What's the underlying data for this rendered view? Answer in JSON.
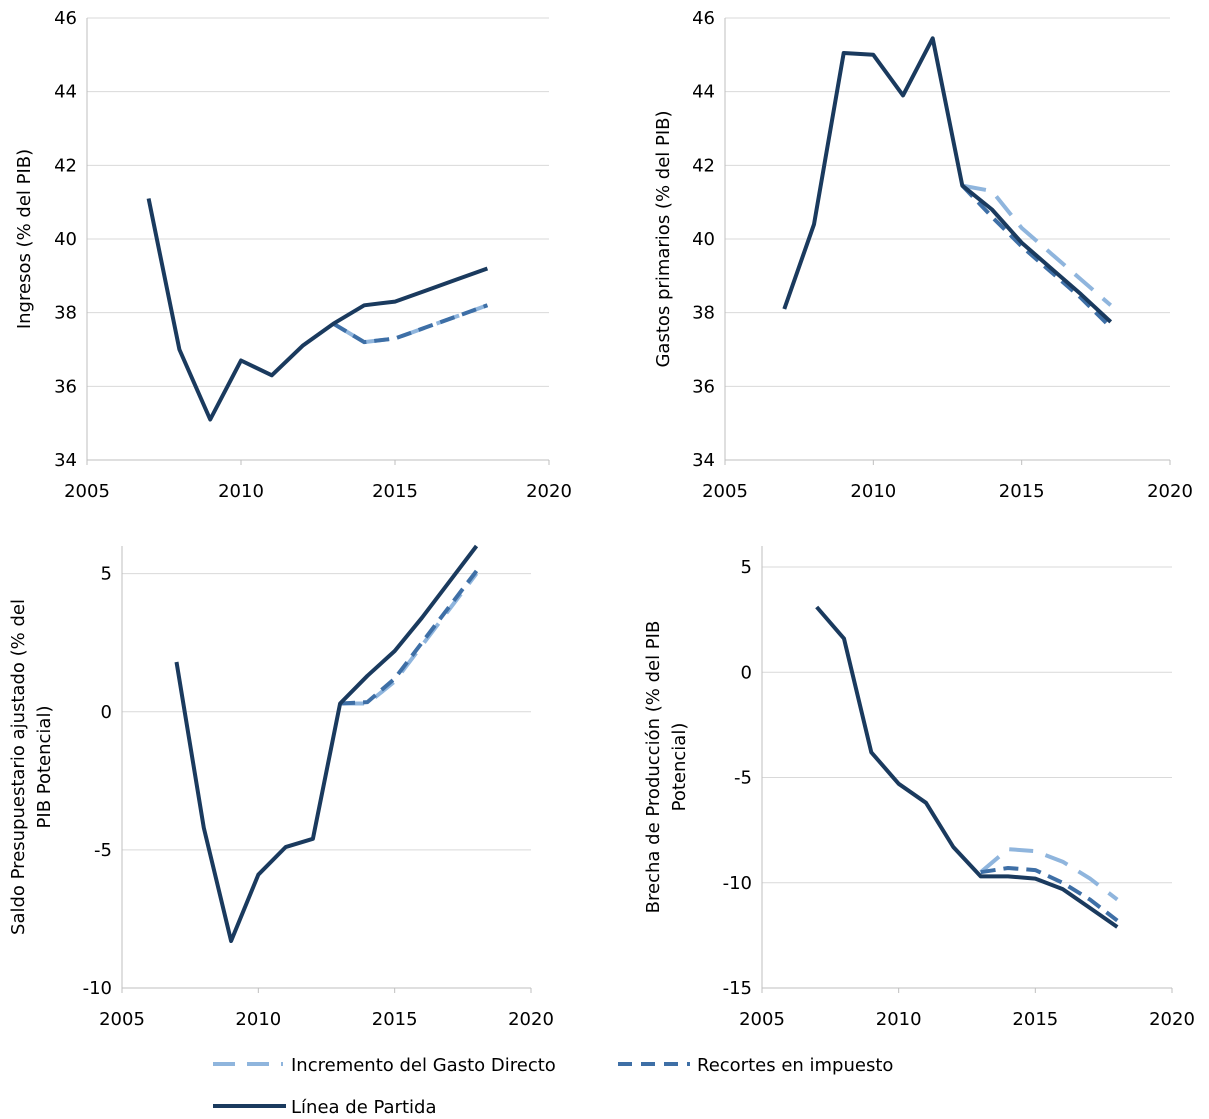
{
  "colors": {
    "baseline": "#1a3a5e",
    "gasto": "#8fb5dd",
    "impuesto": "#3e6fa6",
    "grid": "#d9d9d9"
  },
  "legend": {
    "gasto": "Incremento del Gasto Directo",
    "impuesto": "Recortes en impuesto",
    "baseline": "Línea de Partida"
  },
  "chart_data": [
    {
      "type": "line",
      "ylabel": [
        "Ingresos (% del PIB)"
      ],
      "xlim": [
        2005,
        2020
      ],
      "ylim": [
        34,
        46
      ],
      "xticks": [
        2005,
        2010,
        2015,
        2020
      ],
      "yticks": [
        34,
        36,
        38,
        40,
        42,
        44,
        46
      ],
      "grid": true,
      "series": [
        {
          "name": "Incremento del Gasto Directo",
          "key": "gasto",
          "dash": "long",
          "x": [
            2013,
            2014,
            2015,
            2016,
            2017,
            2018
          ],
          "y": [
            37.7,
            37.2,
            37.3,
            37.6,
            37.9,
            38.2
          ]
        },
        {
          "name": "Recortes en impuesto",
          "key": "impuesto",
          "dash": "short",
          "x": [
            2013,
            2014,
            2015,
            2016,
            2017,
            2018
          ],
          "y": [
            37.7,
            37.2,
            37.3,
            37.6,
            37.9,
            38.2
          ]
        },
        {
          "name": "Línea de Partida",
          "key": "baseline",
          "dash": "solid",
          "x": [
            2007,
            2008,
            2009,
            2010,
            2011,
            2012,
            2013,
            2014,
            2015,
            2016,
            2017,
            2018
          ],
          "y": [
            41.1,
            37.0,
            35.1,
            36.7,
            36.3,
            37.1,
            37.7,
            38.2,
            38.3,
            38.6,
            38.9,
            39.2
          ]
        }
      ]
    },
    {
      "type": "line",
      "ylabel": [
        "Gastos primarios (% del PIB)"
      ],
      "xlim": [
        2005,
        2020
      ],
      "ylim": [
        34,
        46
      ],
      "xticks": [
        2005,
        2010,
        2015,
        2020
      ],
      "yticks": [
        34,
        36,
        38,
        40,
        42,
        44,
        46
      ],
      "grid": true,
      "series": [
        {
          "name": "Incremento del Gasto Directo",
          "key": "gasto",
          "dash": "long",
          "x": [
            2013,
            2014,
            2015,
            2016,
            2017,
            2018
          ],
          "y": [
            41.45,
            41.3,
            40.3,
            39.6,
            38.9,
            38.2
          ]
        },
        {
          "name": "Recortes en impuesto",
          "key": "impuesto",
          "dash": "short",
          "x": [
            2013,
            2014,
            2015,
            2016,
            2017,
            2018
          ],
          "y": [
            41.45,
            40.6,
            39.8,
            39.1,
            38.4,
            37.6
          ]
        },
        {
          "name": "Línea de Partida",
          "key": "baseline",
          "dash": "solid",
          "x": [
            2007,
            2008,
            2009,
            2010,
            2011,
            2012,
            2013,
            2014,
            2015,
            2016,
            2017,
            2018
          ],
          "y": [
            38.1,
            40.4,
            45.05,
            45.0,
            43.9,
            45.45,
            41.45,
            40.8,
            39.9,
            39.2,
            38.5,
            37.75
          ]
        }
      ]
    },
    {
      "type": "line",
      "ylabel": [
        "Saldo Presupuestario ajustado (% del",
        "PIB Potencial)"
      ],
      "xlim": [
        2005,
        2020
      ],
      "ylim": [
        -10,
        6
      ],
      "xticks": [
        2005,
        2010,
        2015,
        2020
      ],
      "yticks": [
        -10,
        -5,
        0,
        5
      ],
      "grid": true,
      "series": [
        {
          "name": "Incremento del Gasto Directo",
          "key": "gasto",
          "dash": "long",
          "x": [
            2013,
            2014,
            2015,
            2016,
            2017,
            2018
          ],
          "y": [
            0.3,
            0.3,
            1.1,
            2.4,
            3.7,
            5.0
          ]
        },
        {
          "name": "Recortes en impuesto",
          "key": "impuesto",
          "dash": "short",
          "x": [
            2013,
            2014,
            2015,
            2016,
            2017,
            2018
          ],
          "y": [
            0.3,
            0.35,
            1.2,
            2.5,
            3.8,
            5.1
          ]
        },
        {
          "name": "Línea de Partida",
          "key": "baseline",
          "dash": "solid",
          "x": [
            2007,
            2008,
            2009,
            2010,
            2011,
            2012,
            2013,
            2014,
            2015,
            2016,
            2017,
            2018
          ],
          "y": [
            1.8,
            -4.2,
            -8.3,
            -5.9,
            -4.9,
            -4.6,
            0.3,
            1.3,
            2.2,
            3.4,
            4.7,
            6.0
          ]
        }
      ]
    },
    {
      "type": "line",
      "ylabel": [
        "Brecha de Producción (% del PIB",
        "Potencial)"
      ],
      "xlim": [
        2005,
        2020
      ],
      "ylim": [
        -15,
        6
      ],
      "xticks": [
        2005,
        2010,
        2015,
        2020
      ],
      "yticks": [
        -15,
        -10,
        -5,
        0,
        5
      ],
      "grid": true,
      "series": [
        {
          "name": "Incremento del Gasto Directo",
          "key": "gasto",
          "dash": "long",
          "x": [
            2013,
            2014,
            2015,
            2016,
            2017,
            2018
          ],
          "y": [
            -9.5,
            -8.4,
            -8.5,
            -9.0,
            -9.8,
            -10.8
          ]
        },
        {
          "name": "Recortes en impuesto",
          "key": "impuesto",
          "dash": "short",
          "x": [
            2013,
            2014,
            2015,
            2016,
            2017,
            2018
          ],
          "y": [
            -9.5,
            -9.3,
            -9.4,
            -10.0,
            -10.8,
            -11.8
          ]
        },
        {
          "name": "Línea de Partida",
          "key": "baseline",
          "dash": "solid",
          "x": [
            2007,
            2008,
            2009,
            2010,
            2011,
            2012,
            2013,
            2014,
            2015,
            2016,
            2017,
            2018
          ],
          "y": [
            3.1,
            1.6,
            -3.8,
            -5.3,
            -6.2,
            -8.3,
            -9.7,
            -9.7,
            -9.8,
            -10.3,
            -11.2,
            -12.1
          ]
        }
      ]
    }
  ]
}
